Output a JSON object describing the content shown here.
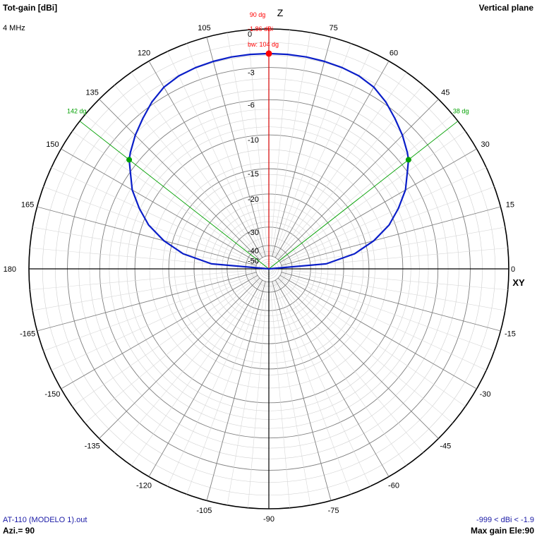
{
  "header": {
    "title_left": "Tot-gain [dBi]",
    "frequency": "4 MHz",
    "title_right": "Vertical plane"
  },
  "footer": {
    "file": "AT-110 (MODELO 1).out",
    "azimuth": "Azi.= 90",
    "range": "-999 < dBi < -1.9",
    "max_gain": "Max gain Ele:90"
  },
  "colors": {
    "pattern": "#0a1ec8",
    "grid": "#808080",
    "axis": "#000000",
    "marker_max": "#ff0000",
    "beamwidth": "#00a000",
    "footer_text": "#1a1aa6"
  },
  "chart_data": {
    "type": "polar",
    "plane": "Vertical plane",
    "quantity": "Tot-gain [dBi]",
    "angle_ticks": [
      0,
      15,
      30,
      45,
      60,
      75,
      90,
      105,
      120,
      135,
      150,
      165,
      180,
      -165,
      -150,
      -135,
      -120,
      -105,
      -90,
      -75,
      -60,
      -45,
      -30,
      -15
    ],
    "radial_ticks_db": [
      0,
      -3,
      -6,
      -10,
      -15,
      -20,
      -30,
      -40,
      -50
    ],
    "axis_labels": {
      "vertical": "Z",
      "horizontal": "XY"
    },
    "series": [
      {
        "elevation_deg": [
          0,
          5,
          10,
          15,
          20,
          25,
          30,
          35,
          38,
          40,
          45,
          50,
          55,
          60,
          65,
          70,
          75,
          80,
          85,
          90,
          95,
          100,
          105,
          110,
          115,
          120,
          125,
          130,
          135,
          140,
          142,
          145,
          150,
          155,
          160,
          165,
          170,
          175,
          180
        ],
        "gain_dbi": [
          -999,
          -24.5,
          -17.4,
          -13.6,
          -10.8,
          -8.9,
          -7.2,
          -6.0,
          -5.2,
          -4.85,
          -4.1,
          -3.45,
          -2.8,
          -2.3,
          -2.05,
          -1.95,
          -1.9,
          -1.87,
          -1.86,
          -1.86,
          -1.86,
          -1.87,
          -1.9,
          -1.95,
          -2.05,
          -2.3,
          -2.8,
          -3.45,
          -4.1,
          -4.85,
          -5.2,
          -6.0,
          -7.2,
          -8.9,
          -10.8,
          -13.6,
          -17.4,
          -24.5,
          -999
        ]
      }
    ],
    "max_marker": {
      "angle_label": "90 dg",
      "gain_label": "-1.86 dBi",
      "beamwidth_label": "bw: 104 dg",
      "elevation_deg": 90,
      "gain_dbi": -1.86
    },
    "beamwidth_markers": [
      {
        "label": "38 dg",
        "elevation_deg": 38,
        "gain_dbi": -5.2
      },
      {
        "label": "142 dg",
        "elevation_deg": 142,
        "gain_dbi": -5.2
      }
    ]
  }
}
